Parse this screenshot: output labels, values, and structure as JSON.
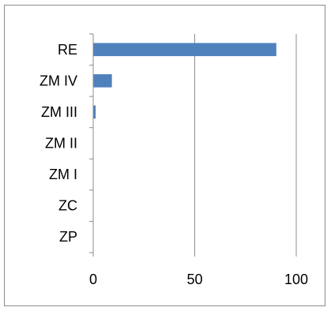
{
  "chart_data": {
    "type": "bar",
    "orientation": "horizontal",
    "title": "",
    "xlabel": "",
    "ylabel": "",
    "categories": [
      "RE",
      "ZM IV",
      "ZM III",
      "ZM II",
      "ZM I",
      "ZC",
      "ZP"
    ],
    "values": [
      90,
      9,
      1,
      0,
      0,
      0,
      0
    ],
    "xlim": [
      0,
      100
    ],
    "x_ticks": [
      0,
      50,
      100
    ],
    "x_tick_labels": [
      "0",
      "50",
      "100"
    ],
    "grid": "vertical",
    "legend": "none",
    "bar_color": "#4f81bd"
  }
}
